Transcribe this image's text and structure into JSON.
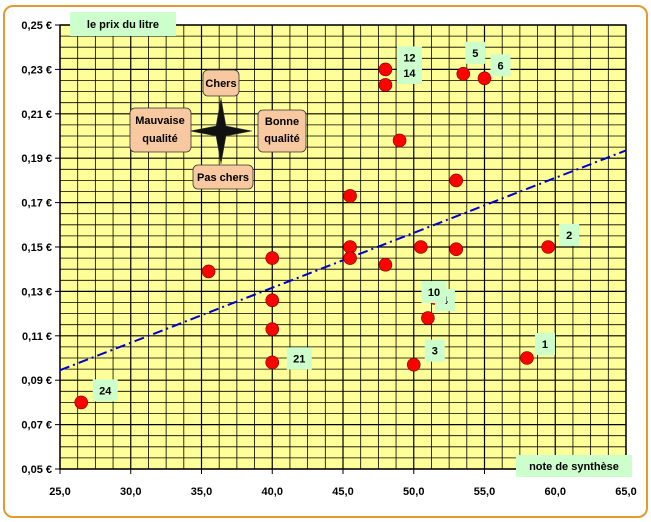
{
  "chart_data": {
    "type": "scatter",
    "title": "",
    "ylabel": "le prix du litre",
    "xlabel": "note de synthèse",
    "xlim": [
      25.0,
      65.0
    ],
    "ylim": [
      0.05,
      0.25
    ],
    "x_ticks": [
      "25,0",
      "30,0",
      "35,0",
      "40,0",
      "45,0",
      "50,0",
      "55,0",
      "60,0",
      "65,0"
    ],
    "y_ticks": [
      "0,05 €",
      "0,07 €",
      "0,09 €",
      "0,11 €",
      "0,13 €",
      "0,15 €",
      "0,17 €",
      "0,19 €",
      "0,21 €",
      "0,23 €",
      "0,25 €"
    ],
    "grid": true,
    "colors": {
      "plot_background": "#ffff99",
      "point": "#ff0000",
      "trend": "#0000cc",
      "label_box": "#ccffcc",
      "quadrant_box": "#f8c8a0",
      "frame": "#e39a2e"
    },
    "points": [
      {
        "x": 26.5,
        "y": 0.08,
        "label": "24"
      },
      {
        "x": 35.5,
        "y": 0.139,
        "label": ""
      },
      {
        "x": 40.0,
        "y": 0.145,
        "label": ""
      },
      {
        "x": 40.0,
        "y": 0.126,
        "label": ""
      },
      {
        "x": 40.0,
        "y": 0.113,
        "label": ""
      },
      {
        "x": 40.0,
        "y": 0.098,
        "label": "21"
      },
      {
        "x": 45.5,
        "y": 0.173,
        "label": ""
      },
      {
        "x": 45.5,
        "y": 0.15,
        "label": ""
      },
      {
        "x": 45.5,
        "y": 0.145,
        "label": ""
      },
      {
        "x": 48.0,
        "y": 0.23,
        "label": "12"
      },
      {
        "x": 48.0,
        "y": 0.223,
        "label": "14"
      },
      {
        "x": 48.0,
        "y": 0.142,
        "label": ""
      },
      {
        "x": 49.0,
        "y": 0.198,
        "label": ""
      },
      {
        "x": 50.0,
        "y": 0.097,
        "label": "3"
      },
      {
        "x": 50.5,
        "y": 0.15,
        "label": ""
      },
      {
        "x": 51.0,
        "y": 0.118,
        "label": "4"
      },
      {
        "x": 51.5,
        "y": 0.127,
        "label": "10"
      },
      {
        "x": 53.0,
        "y": 0.18,
        "label": ""
      },
      {
        "x": 53.0,
        "y": 0.149,
        "label": ""
      },
      {
        "x": 53.5,
        "y": 0.228,
        "label": "5"
      },
      {
        "x": 55.0,
        "y": 0.226,
        "label": "6"
      },
      {
        "x": 58.0,
        "y": 0.1,
        "label": "1"
      },
      {
        "x": 59.5,
        "y": 0.15,
        "label": "2"
      }
    ],
    "trendline": {
      "x": [
        25.0,
        65.0
      ],
      "y": [
        0.0945,
        0.1935
      ],
      "style": "dash-dot"
    },
    "quadrant": {
      "top": "Chers",
      "bottom": "Pas chers",
      "left": [
        "Mauvaise",
        "qualité"
      ],
      "right": [
        "Bonne",
        "qualité"
      ]
    }
  }
}
